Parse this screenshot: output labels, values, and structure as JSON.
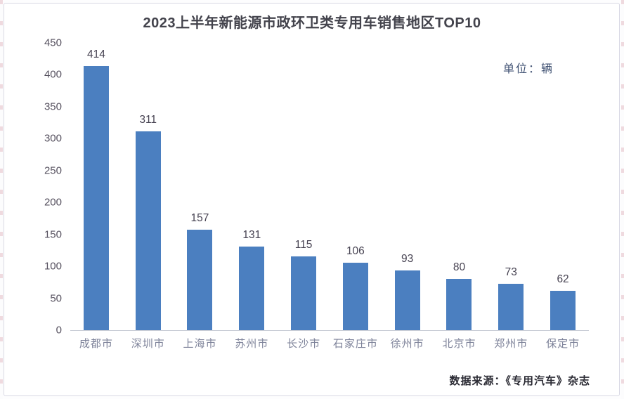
{
  "page": {
    "title": "2023上半年新能源市政环卫类专用车销售地区TOP10",
    "unit_label": "单位：辆",
    "source_label": "数据来源：《专用汽车》杂志"
  },
  "chart_data": {
    "type": "bar",
    "title": "2023上半年新能源市政环卫类专用车销售地区TOP10",
    "categories": [
      "成都市",
      "深圳市",
      "上海市",
      "苏州市",
      "长沙市",
      "石家庄市",
      "徐州市",
      "北京市",
      "郑州市",
      "保定市"
    ],
    "values": [
      414,
      311,
      157,
      131,
      115,
      106,
      93,
      80,
      73,
      62
    ],
    "unit": "辆",
    "xlabel": "",
    "ylabel": "",
    "ylim": [
      0,
      450
    ],
    "ytick_step": 50,
    "grid": false,
    "legend": "none",
    "data_labels": true,
    "bar_color": "#4b7fc0",
    "annotations": [
      "单位：辆",
      "数据来源：《专用汽车》杂志"
    ]
  },
  "colors": {
    "bar": "#4b7fc0",
    "title_text": "#43434c",
    "value_label_text": "#474352",
    "axis_tick_text": "#56515f",
    "category_text": "#7d8299",
    "unit_text": "#3c4e70",
    "source_text": "#2a2a33",
    "axis_line": "#c9cdd6",
    "card_border": "#d9d9e4",
    "background": "#ffffff"
  }
}
